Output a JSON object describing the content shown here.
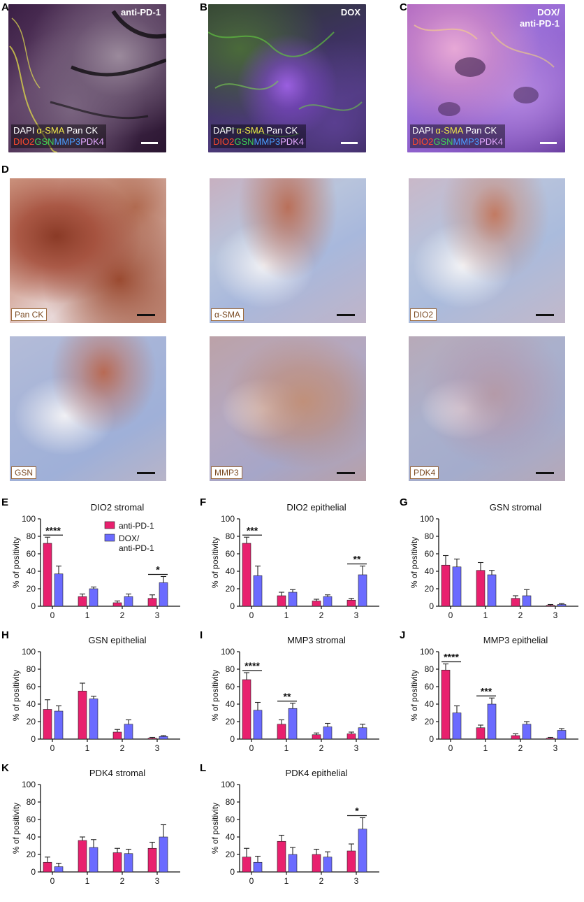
{
  "panel_letters": [
    "A",
    "B",
    "C",
    "D",
    "E",
    "F",
    "G",
    "H",
    "I",
    "J",
    "K",
    "L"
  ],
  "fluorescence": [
    {
      "title": "anti-PD-1"
    },
    {
      "title": "DOX"
    },
    {
      "title": "DOX/\nanti-PD-1"
    }
  ],
  "fluo_legend": {
    "row1": [
      {
        "text": "DAPI",
        "color": "#ffffff"
      },
      {
        "text": "α-SMA",
        "color": "#f2e84a"
      },
      {
        "text": "Pan CK",
        "color": "#ffffff"
      }
    ],
    "row2": [
      {
        "text": "DIO2",
        "color": "#ff4a2e"
      },
      {
        "text": "GSN",
        "color": "#3fd35a"
      },
      {
        "text": "MMP3",
        "color": "#4a9cff"
      },
      {
        "text": "PDK4",
        "color": "#e3a8ff"
      }
    ]
  },
  "ihc_labels": [
    "Pan CK",
    "α-SMA",
    "DIO2",
    "GSN",
    "MMP3",
    "PDK4"
  ],
  "colors": {
    "anti_pd1": "#e8206e",
    "dox_anti_pd1": "#6b6bff"
  },
  "legend": {
    "series1": "anti-PD-1",
    "series2": "DOX/\nanti-PD-1"
  },
  "chart_data": [
    {
      "type": "bar",
      "title": "DIO2 stromal",
      "ylabel": "% of positivity",
      "categories": [
        "0",
        "1",
        "2",
        "3"
      ],
      "ylim": [
        0,
        100
      ],
      "yticks": [
        0,
        20,
        40,
        60,
        80,
        100
      ],
      "series": [
        {
          "name": "anti-PD-1",
          "values": [
            72,
            11,
            4,
            9
          ],
          "errors": [
            7,
            3,
            2,
            4
          ]
        },
        {
          "name": "DOX/\nanti-PD-1",
          "values": [
            37,
            20,
            11,
            27
          ],
          "errors": [
            9,
            2,
            3,
            7
          ]
        }
      ],
      "annotations": [
        {
          "group": 0,
          "text": "****"
        },
        {
          "group": 3,
          "text": "*"
        }
      ]
    },
    {
      "type": "bar",
      "title": "DIO2 epithelial",
      "ylabel": "% of positivity",
      "categories": [
        "0",
        "1",
        "2",
        "3"
      ],
      "ylim": [
        0,
        100
      ],
      "yticks": [
        0,
        20,
        40,
        60,
        80,
        100
      ],
      "series": [
        {
          "name": "anti-PD-1",
          "values": [
            72,
            12,
            6,
            7
          ],
          "errors": [
            7,
            4,
            2,
            2
          ]
        },
        {
          "name": "DOX/\nanti-PD-1",
          "values": [
            35,
            16,
            11,
            36
          ],
          "errors": [
            11,
            3,
            2,
            10
          ]
        }
      ],
      "annotations": [
        {
          "group": 0,
          "text": "***"
        },
        {
          "group": 3,
          "text": "**"
        }
      ]
    },
    {
      "type": "bar",
      "title": "GSN stromal",
      "ylabel": "% of positivity",
      "categories": [
        "0",
        "1",
        "2",
        "3"
      ],
      "ylim": [
        0,
        100
      ],
      "yticks": [
        0,
        20,
        40,
        60,
        80,
        100
      ],
      "series": [
        {
          "name": "anti-PD-1",
          "values": [
            47,
            41,
            9,
            1
          ],
          "errors": [
            11,
            9,
            3,
            1
          ]
        },
        {
          "name": "DOX/\nanti-PD-1",
          "values": [
            45,
            36,
            12,
            2
          ],
          "errors": [
            9,
            5,
            7,
            1
          ]
        }
      ],
      "annotations": []
    },
    {
      "type": "bar",
      "title": "GSN epithelial",
      "ylabel": "% of positivity",
      "categories": [
        "0",
        "1",
        "2",
        "3"
      ],
      "ylim": [
        0,
        100
      ],
      "yticks": [
        0,
        20,
        40,
        60,
        80,
        100
      ],
      "series": [
        {
          "name": "anti-PD-1",
          "values": [
            34,
            55,
            8,
            1
          ],
          "errors": [
            11,
            9,
            3,
            1
          ]
        },
        {
          "name": "DOX/\nanti-PD-1",
          "values": [
            32,
            46,
            17,
            3
          ],
          "errors": [
            6,
            3,
            5,
            1
          ]
        }
      ],
      "annotations": []
    },
    {
      "type": "bar",
      "title": "MMP3 stromal",
      "ylabel": "% of positivity",
      "categories": [
        "0",
        "1",
        "2",
        "3"
      ],
      "ylim": [
        0,
        100
      ],
      "yticks": [
        0,
        20,
        40,
        60,
        80,
        100
      ],
      "series": [
        {
          "name": "anti-PD-1",
          "values": [
            68,
            17,
            5,
            6
          ],
          "errors": [
            8,
            5,
            2,
            2
          ]
        },
        {
          "name": "DOX/\nanti-PD-1",
          "values": [
            33,
            35,
            14,
            13
          ],
          "errors": [
            9,
            6,
            4,
            4
          ]
        }
      ],
      "annotations": [
        {
          "group": 0,
          "text": "****"
        },
        {
          "group": 1,
          "text": "**"
        }
      ]
    },
    {
      "type": "bar",
      "title": "MMP3 epithelial",
      "ylabel": "% of positivity",
      "categories": [
        "0",
        "1",
        "2",
        "3"
      ],
      "ylim": [
        0,
        100
      ],
      "yticks": [
        0,
        20,
        40,
        60,
        80,
        100
      ],
      "series": [
        {
          "name": "anti-PD-1",
          "values": [
            79,
            13,
            4,
            1
          ],
          "errors": [
            7,
            3,
            2,
            1
          ]
        },
        {
          "name": "DOX/\nanti-PD-1",
          "values": [
            30,
            40,
            17,
            10
          ],
          "errors": [
            8,
            7,
            3,
            2
          ]
        }
      ],
      "annotations": [
        {
          "group": 0,
          "text": "****"
        },
        {
          "group": 1,
          "text": "***"
        }
      ]
    },
    {
      "type": "bar",
      "title": "PDK4 stromal",
      "ylabel": "% of positivity",
      "categories": [
        "0",
        "1",
        "2",
        "3"
      ],
      "ylim": [
        0,
        100
      ],
      "yticks": [
        0,
        20,
        40,
        60,
        80,
        100
      ],
      "series": [
        {
          "name": "anti-PD-1",
          "values": [
            11,
            36,
            22,
            27
          ],
          "errors": [
            6,
            4,
            5,
            7
          ]
        },
        {
          "name": "DOX/\nanti-PD-1",
          "values": [
            6,
            28,
            21,
            40
          ],
          "errors": [
            4,
            9,
            5,
            14
          ]
        }
      ],
      "annotations": []
    },
    {
      "type": "bar",
      "title": "PDK4 epithelial",
      "ylabel": "% of positivity",
      "categories": [
        "0",
        "1",
        "2",
        "3"
      ],
      "ylim": [
        0,
        100
      ],
      "yticks": [
        0,
        20,
        40,
        60,
        80,
        100
      ],
      "series": [
        {
          "name": "anti-PD-1",
          "values": [
            17,
            35,
            20,
            24
          ],
          "errors": [
            10,
            7,
            6,
            8
          ]
        },
        {
          "name": "DOX/\nanti-PD-1",
          "values": [
            11,
            20,
            17,
            49
          ],
          "errors": [
            7,
            8,
            6,
            13
          ]
        }
      ],
      "annotations": [
        {
          "group": 3,
          "text": "*"
        }
      ]
    }
  ]
}
